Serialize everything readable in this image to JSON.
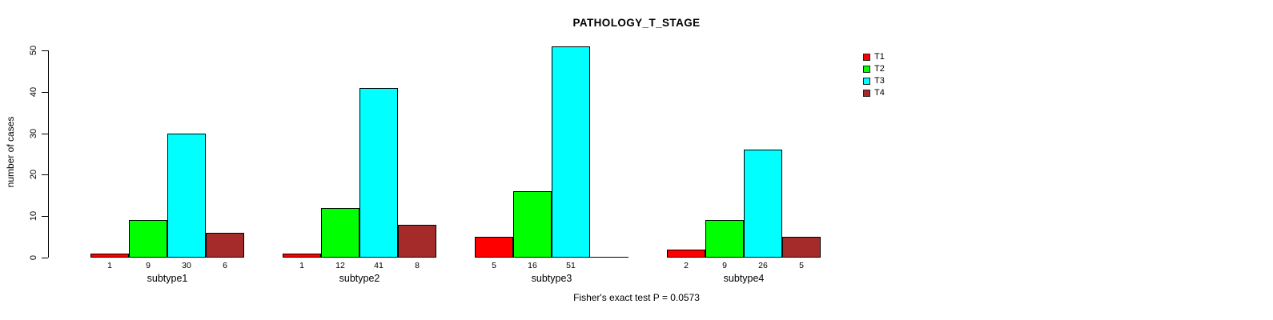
{
  "chart_data": {
    "type": "bar",
    "title": "PATHOLOGY_T_STAGE",
    "ylabel": "number of cases",
    "xlabel": "",
    "ylim": [
      0,
      50
    ],
    "yticks": [
      0,
      10,
      20,
      30,
      40,
      50
    ],
    "grid": false,
    "categories": [
      "subtype1",
      "subtype2",
      "subtype3",
      "subtype4"
    ],
    "series": [
      {
        "name": "T1",
        "color": "#FF0000",
        "values": [
          1,
          1,
          5,
          2
        ]
      },
      {
        "name": "T2",
        "color": "#00FF00",
        "values": [
          9,
          12,
          16,
          9
        ]
      },
      {
        "name": "T3",
        "color": "#00FFFF",
        "values": [
          30,
          41,
          51,
          26
        ]
      },
      {
        "name": "T4",
        "color": "#A52A2A",
        "values": [
          6,
          8,
          0,
          5
        ]
      }
    ],
    "bar_labels": [
      [
        "1",
        "9",
        "30",
        "6"
      ],
      [
        "1",
        "12",
        "41",
        "8"
      ],
      [
        "5",
        "16",
        "51",
        ""
      ],
      [
        "2",
        "9",
        "26",
        "5"
      ]
    ],
    "legend": {
      "position": "right",
      "entries": [
        "T1",
        "T2",
        "T3",
        "T4"
      ]
    },
    "caption": "Fisher's exact test P = 0.0573"
  }
}
